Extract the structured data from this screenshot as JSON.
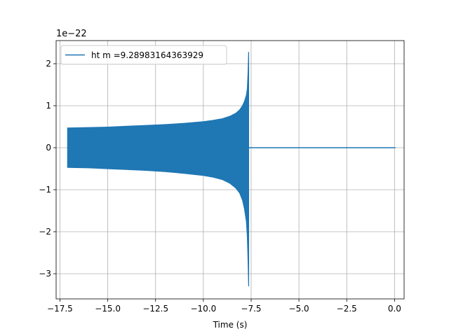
{
  "chart_data": {
    "type": "line",
    "title": "",
    "xlabel": "Time (s)",
    "ylabel": "",
    "y_offset_label": "1e−22",
    "xlim": [
      -17.7,
      0.5
    ],
    "ylim": [
      -3.6,
      2.55
    ],
    "x_ticks": [
      -17.5,
      -15.0,
      -12.5,
      -10.0,
      -7.5,
      -5.0,
      -2.5,
      0.0
    ],
    "x_tick_labels": [
      "−17.5",
      "−15.0",
      "−12.5",
      "−10.0",
      "−7.5",
      "−5.0",
      "−2.5",
      "0.0"
    ],
    "y_ticks": [
      -3,
      -2,
      -1,
      0,
      1,
      2
    ],
    "y_tick_labels": [
      "−3",
      "−2",
      "−1",
      "0",
      "1",
      "2"
    ],
    "grid": true,
    "legend_position": "top-left",
    "series": [
      {
        "name": "ht m =9.28983164363929",
        "color": "#1f77b4",
        "description_start_time": -17.1,
        "merger_time": -7.62,
        "end_time": 0.05,
        "envelope": {
          "x": [
            -17.1,
            -16.0,
            -15.0,
            -14.0,
            -13.0,
            -12.0,
            -11.0,
            -10.0,
            -9.5,
            -9.0,
            -8.6,
            -8.3,
            -8.1,
            -7.95,
            -7.85,
            -7.75,
            -7.7,
            -7.66,
            -7.63
          ],
          "upper": [
            0.47,
            0.48,
            0.49,
            0.51,
            0.53,
            0.55,
            0.58,
            0.62,
            0.65,
            0.69,
            0.75,
            0.82,
            0.9,
            1.0,
            1.1,
            1.25,
            1.4,
            1.8,
            2.28
          ],
          "lower": [
            -0.47,
            -0.48,
            -0.5,
            -0.52,
            -0.54,
            -0.57,
            -0.61,
            -0.66,
            -0.7,
            -0.76,
            -0.85,
            -0.96,
            -1.08,
            -1.25,
            -1.45,
            -1.75,
            -2.1,
            -2.7,
            -3.3
          ]
        },
        "post_merger_value": 0.0
      }
    ]
  }
}
